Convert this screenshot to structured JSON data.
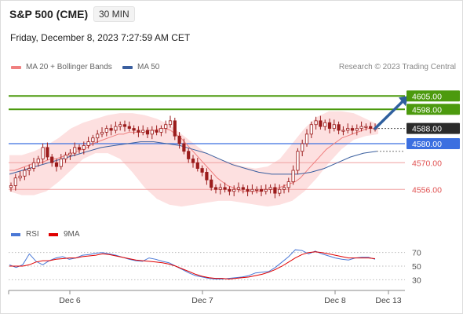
{
  "header": {
    "title": "S&P 500 (CME)",
    "interval": "30 MIN",
    "datetime": "Friday, December 8, 2023 7:27:59 AM CET"
  },
  "legend": {
    "ma20_label": "MA 20 + Bollinger Bands",
    "ma50_label": "MA 50",
    "credit": "Research © 2023 Trading Central"
  },
  "rsi_legend": {
    "rsi_label": "RSI",
    "ma9_label": "9MA"
  },
  "colors": {
    "bollinger_fill": "#fde0e0",
    "ma20": "#f08080",
    "ma50": "#3a5f9f",
    "candles": "#9b1c1c",
    "resistance": "#4c9a0e",
    "support_line": "#f0a0a0",
    "pivot": "#3b6fe0",
    "arrow": "#2f5f9e",
    "rsi": "#4a78d6",
    "rsi_ma": "#e00000"
  },
  "chart_data": [
    {
      "type": "candlestick",
      "title": "S&P 500 (CME)",
      "timeframe": "30 MIN",
      "ylim": [
        4545,
        4615
      ],
      "x_tick_labels": [
        "Dec 6",
        "Dec 7",
        "Dec 8",
        "Dec 13"
      ],
      "series_labels": [
        "MA 20 + Bollinger Bands",
        "MA 50"
      ],
      "levels": [
        {
          "value": 4605,
          "label": "4605.00",
          "kind": "resistance"
        },
        {
          "value": 4598,
          "label": "4598.00",
          "kind": "resistance"
        },
        {
          "value": 4588,
          "label": "4588.00",
          "kind": "last"
        },
        {
          "value": 4580,
          "label": "4580.00",
          "kind": "pivot"
        },
        {
          "value": 4570,
          "label": "4570.00",
          "kind": "support"
        },
        {
          "value": 4556,
          "label": "4556.00",
          "kind": "support"
        }
      ],
      "closes": [
        4558,
        4562,
        4563,
        4566,
        4567,
        4570,
        4572,
        4578,
        4573,
        4570,
        4568,
        4572,
        4574,
        4575,
        4578,
        4577,
        4579,
        4581,
        4583,
        4585,
        4586,
        4588,
        4587,
        4589,
        4590,
        4589,
        4588,
        4587,
        4586,
        4587,
        4585,
        4587,
        4586,
        4588,
        4590,
        4592,
        4584,
        4580,
        4576,
        4572,
        4570,
        4567,
        4565,
        4561,
        4557,
        4556,
        4557,
        4556,
        4555,
        4556,
        4557,
        4556,
        4555,
        4556,
        4556,
        4555,
        4556,
        4557,
        4554,
        4556,
        4557,
        4560,
        4566,
        4576,
        4580,
        4585,
        4590,
        4592,
        4589,
        4591,
        4588,
        4590,
        4587,
        4587,
        4588,
        4587,
        4588,
        4589,
        4589,
        4588,
        4588
      ],
      "ma20": [
        4566,
        4566,
        4567,
        4568,
        4569,
        4570,
        4570,
        4571,
        4572,
        4572,
        4573,
        4574,
        4575,
        4576,
        4577,
        4578,
        4580,
        4581,
        4582,
        4583,
        4584,
        4585,
        4585,
        4586,
        4586,
        4586,
        4586,
        4587,
        4587,
        4588,
        4588,
        4587,
        4585,
        4583,
        4580,
        4577,
        4574,
        4571,
        4568,
        4565,
        4562,
        4560,
        4558,
        4557,
        4556,
        4555,
        4555,
        4555,
        4555,
        4556,
        4556,
        4556,
        4557,
        4558,
        4559,
        4560,
        4562,
        4565,
        4568,
        4571,
        4574,
        4577,
        4579,
        4581,
        4583,
        4584,
        4585,
        4586,
        4587,
        4588,
        4588,
        4588
      ],
      "ma50": [
        4564,
        4566,
        4568,
        4570,
        4572,
        4574,
        4576,
        4578,
        4579,
        4580,
        4581,
        4581,
        4580,
        4579,
        4577,
        4575,
        4572,
        4569,
        4567,
        4565,
        4564,
        4564,
        4564,
        4565,
        4567,
        4570,
        4573,
        4575,
        4576
      ],
      "bollinger_upper": [
        4574,
        4574,
        4576,
        4579,
        4583,
        4588,
        4591,
        4593,
        4595,
        4596,
        4596,
        4595,
        4593,
        4590,
        4585,
        4580,
        4575,
        4572,
        4570,
        4568,
        4567,
        4568,
        4572,
        4580,
        4588,
        4594,
        4597,
        4597,
        4596,
        4593,
        4590
      ],
      "bollinger_lower": [
        4555,
        4553,
        4553,
        4555,
        4560,
        4566,
        4572,
        4575,
        4575,
        4572,
        4565,
        4557,
        4551,
        4548,
        4547,
        4548,
        4549,
        4550,
        4550,
        4549,
        4548,
        4547,
        4548,
        4550,
        4555,
        4562,
        4570,
        4577,
        4582,
        4584,
        4585
      ]
    },
    {
      "type": "line",
      "title": "RSI",
      "series_labels": [
        "RSI",
        "9MA"
      ],
      "ylim": [
        20,
        80
      ],
      "y_ticks": [
        70,
        50,
        30
      ],
      "rsi": [
        52,
        48,
        52,
        68,
        57,
        52,
        58,
        62,
        64,
        60,
        62,
        66,
        67,
        69,
        70,
        68,
        66,
        63,
        60,
        58,
        57,
        62,
        60,
        57,
        55,
        50,
        45,
        40,
        36,
        34,
        32,
        31,
        31,
        32,
        33,
        34,
        36,
        40,
        41,
        42,
        48,
        56,
        64,
        74,
        73,
        68,
        72,
        68,
        65,
        62,
        60,
        59,
        62,
        63,
        63,
        60
      ],
      "rsi_ma": [
        50,
        50,
        50,
        52,
        56,
        58,
        58,
        60,
        61,
        62,
        62,
        64,
        65,
        66,
        68,
        67,
        65,
        63,
        61,
        59,
        58,
        57,
        56,
        55,
        53,
        50,
        46,
        42,
        38,
        35,
        33,
        32,
        32,
        31,
        32,
        33,
        34,
        36,
        38,
        41,
        45,
        50,
        56,
        62,
        67,
        70,
        71,
        70,
        68,
        66,
        64,
        62,
        62,
        62,
        62,
        61
      ]
    }
  ]
}
